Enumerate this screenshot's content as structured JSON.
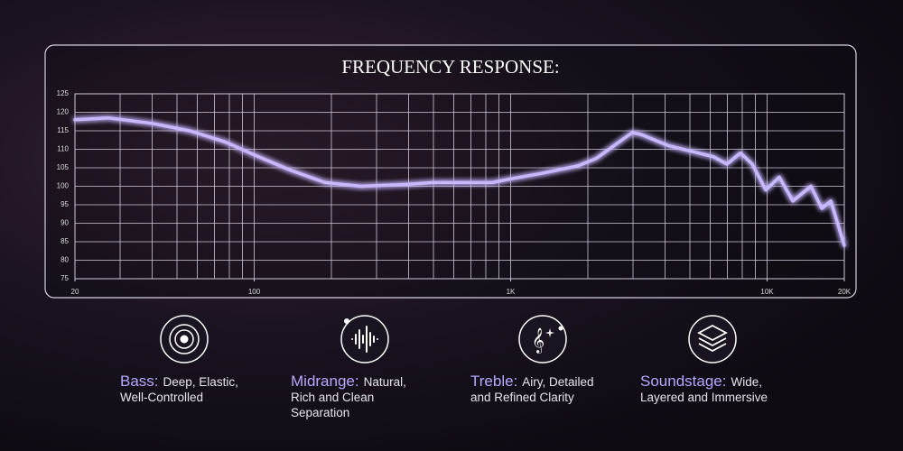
{
  "chart_data": {
    "type": "line",
    "title": "FREQUENCY RESPONSE:",
    "log_x": true,
    "grid": true,
    "x": [
      20,
      27,
      40,
      56,
      77,
      100,
      137,
      189,
      261,
      392,
      500,
      692,
      848,
      1000,
      1322,
      1830,
      2153,
      2530,
      2977,
      3230,
      4115,
      5036,
      6170,
      6970,
      7870,
      8750,
      9880,
      11160,
      12600,
      14820,
      16340,
      17720,
      20000
    ],
    "series": [
      {
        "name": "Frequency response",
        "color": "#c9b8ff",
        "values": [
          118,
          118.5,
          117,
          115,
          112,
          108.5,
          104.5,
          101,
          100,
          100.5,
          101,
          101,
          101,
          102,
          103.5,
          105.5,
          107.5,
          111,
          114.5,
          114,
          111,
          109.5,
          108,
          106,
          109,
          106,
          99,
          102.5,
          96,
          100,
          94,
          96,
          84
        ]
      }
    ],
    "xlim": [
      20,
      20000
    ],
    "xticks": [
      20,
      100,
      {
        "value": 1000,
        "label": "1K"
      },
      {
        "value": 10000,
        "label": "10K"
      },
      {
        "value": 20000,
        "label": "20K"
      }
    ],
    "xgrid": [
      20,
      30,
      40,
      50,
      60,
      70,
      80,
      90,
      100,
      200,
      300,
      400,
      500,
      600,
      700,
      800,
      900,
      1000,
      2000,
      3000,
      4000,
      5000,
      6000,
      7000,
      8000,
      9000,
      10000,
      20000
    ],
    "ylim": [
      75,
      125
    ],
    "yticks": [
      75,
      80,
      85,
      90,
      95,
      100,
      105,
      110,
      115,
      120,
      125
    ]
  },
  "features": [
    {
      "name": "Bass:",
      "lines": [
        "Deep, Elastic,",
        "Well-Controlled"
      ]
    },
    {
      "name": "Midrange:",
      "lines": [
        "Natural,",
        "Rich and Clean",
        "Separation"
      ]
    },
    {
      "name": "Treble:",
      "lines": [
        "Airy, Detailed",
        "and Refined Clarity"
      ]
    },
    {
      "name": "Soundstage:",
      "lines": [
        "Wide,",
        "Layered and Immersive"
      ]
    }
  ]
}
